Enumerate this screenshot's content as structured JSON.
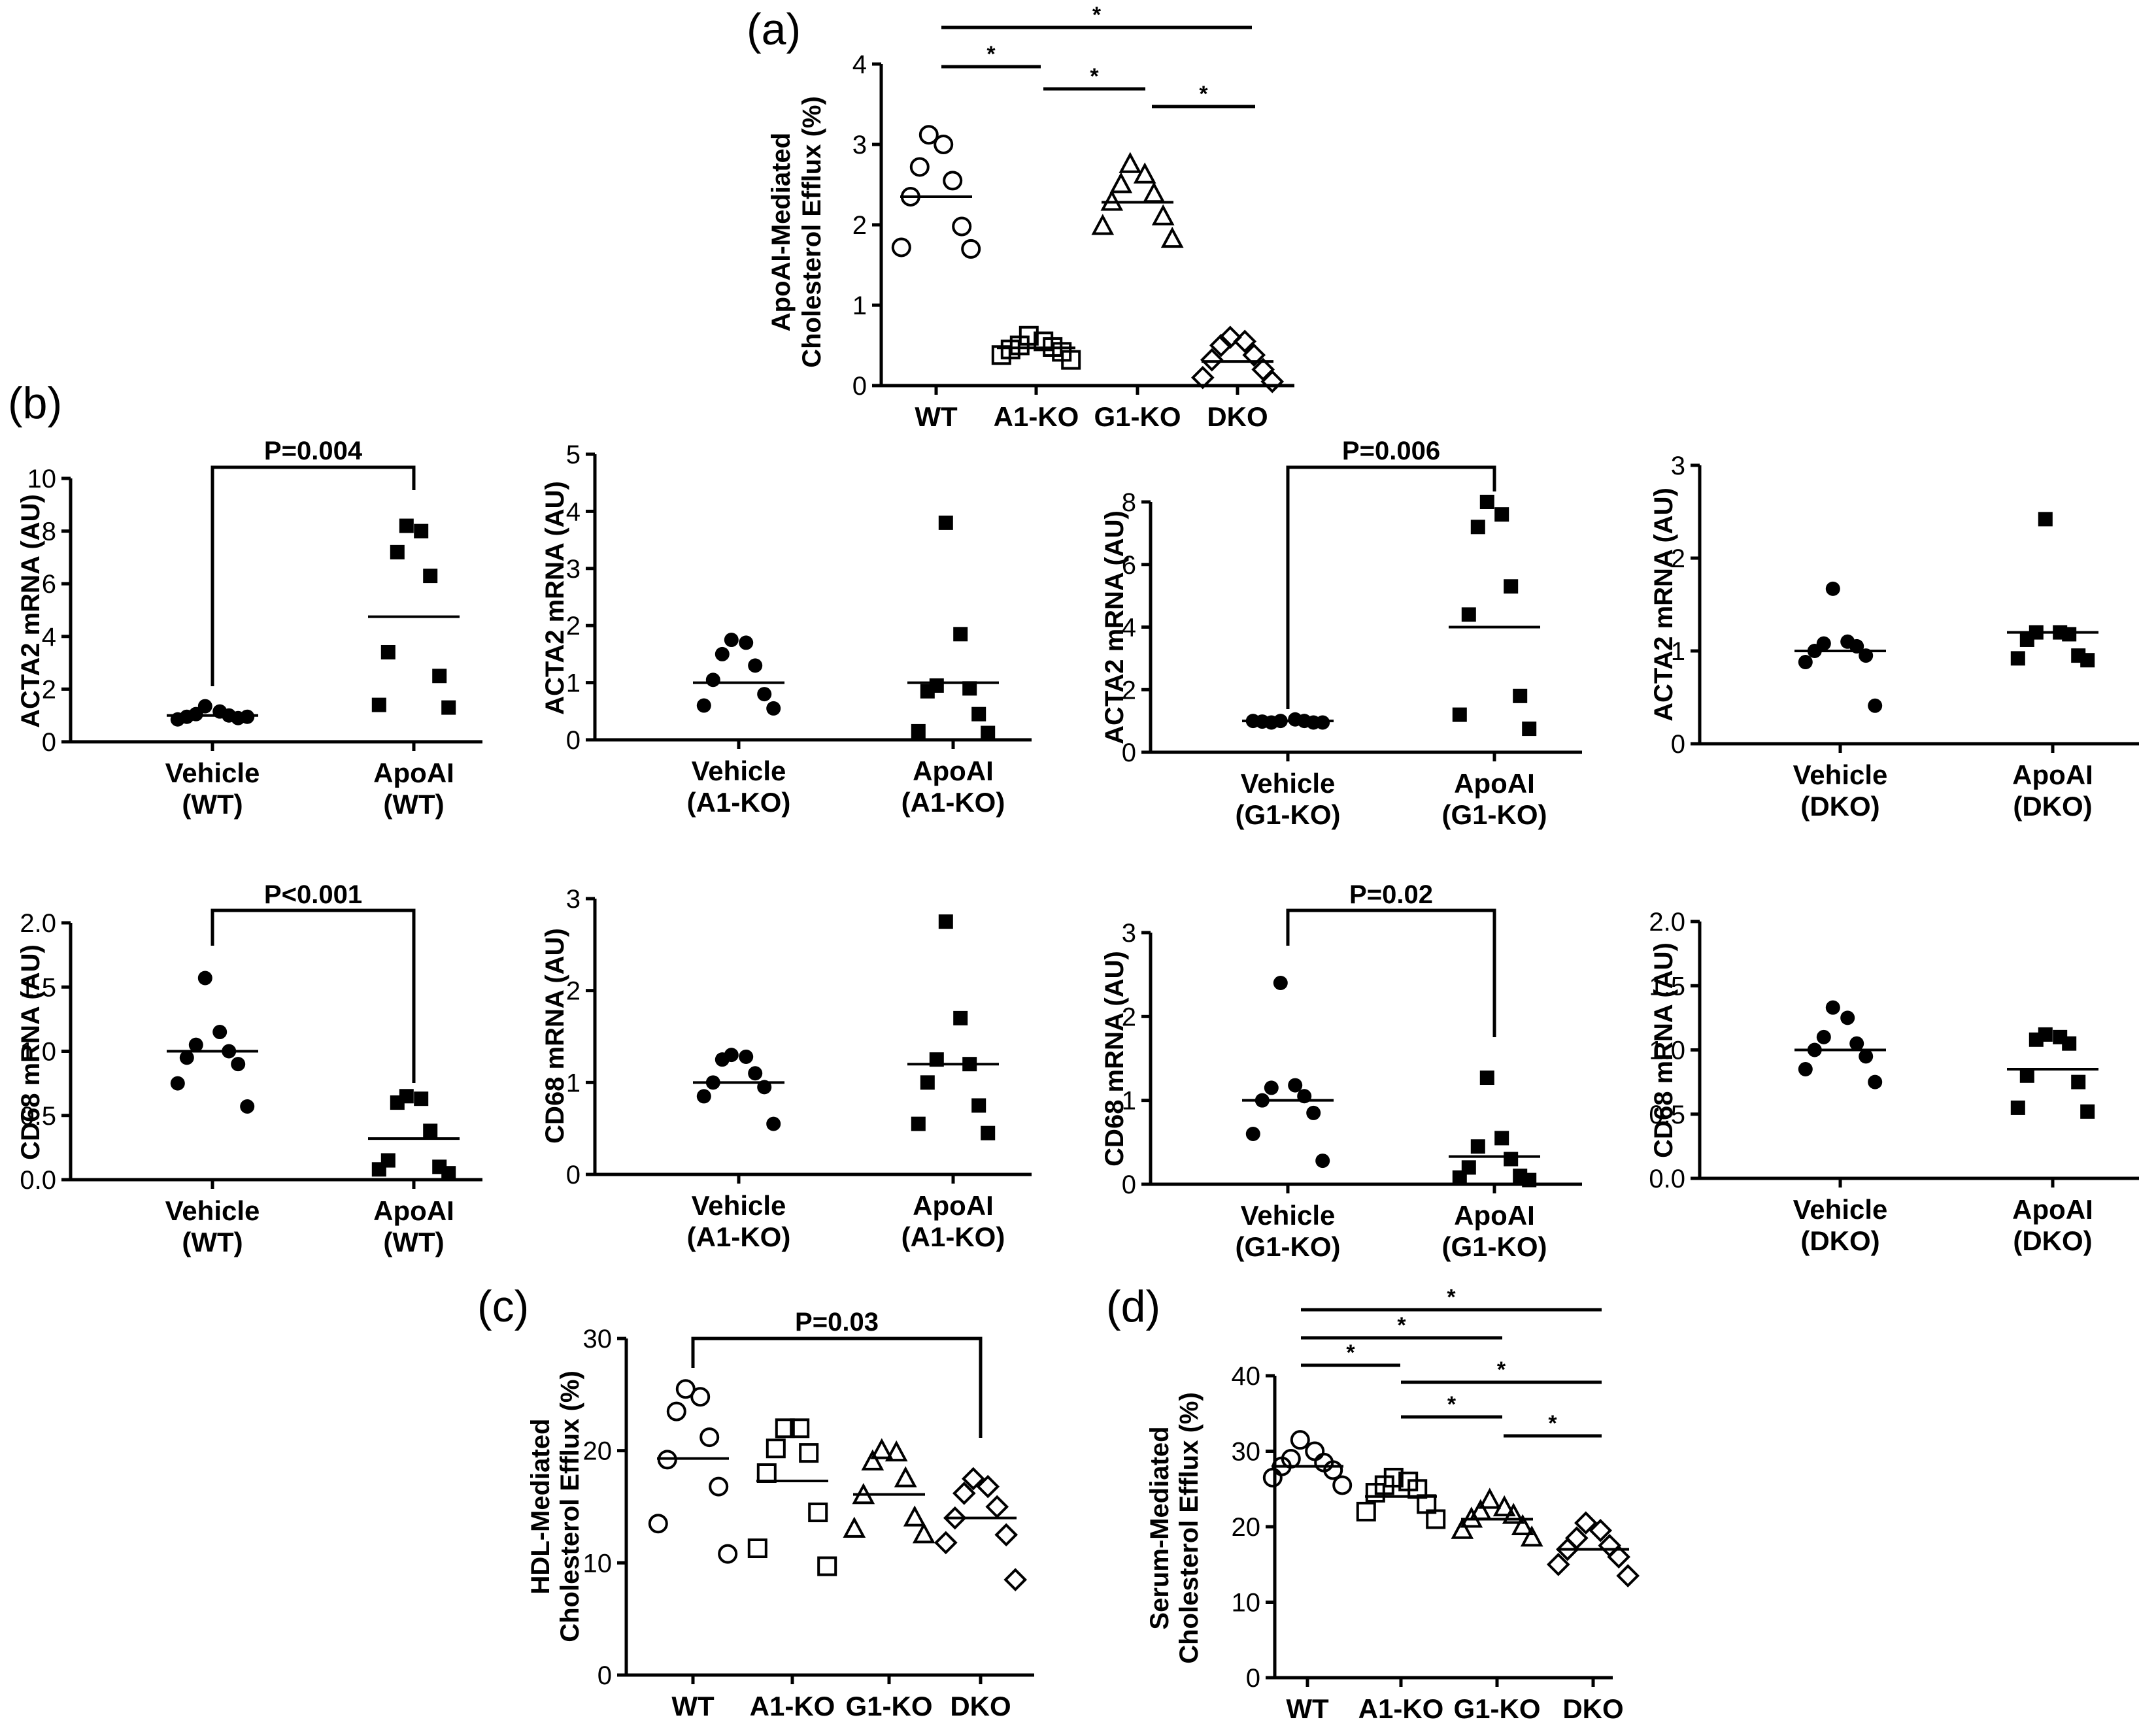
{
  "chart_data": [
    {
      "id": "a",
      "panel": "(a)",
      "type": "scatter",
      "ylabel": [
        "ApoAI-Mediated",
        "Cholesterol Efflux (%)"
      ],
      "ylim": [
        0,
        4
      ],
      "yticks": [
        "0",
        "1",
        "2",
        "3",
        "4"
      ],
      "categories": [
        "WT",
        "A1-KO",
        "G1-KO",
        "DKO"
      ],
      "markers": [
        "circle",
        "square",
        "triangle",
        "diamond"
      ],
      "points": [
        [
          3.12,
          3.0,
          2.72,
          2.55,
          2.35,
          1.98,
          1.72,
          1.7
        ],
        [
          0.62,
          0.55,
          0.5,
          0.48,
          0.45,
          0.42,
          0.38,
          0.32
        ],
        [
          2.75,
          2.62,
          2.5,
          2.38,
          2.28,
          2.1,
          1.98,
          1.82
        ],
        [
          0.6,
          0.55,
          0.5,
          0.38,
          0.32,
          0.2,
          0.1,
          0.05
        ]
      ],
      "medians": [
        2.35,
        0.47,
        2.28,
        0.3
      ],
      "significance": [
        {
          "from": 0,
          "to": 3,
          "label": "*"
        },
        {
          "from": 0,
          "to": 1,
          "label": "*"
        },
        {
          "from": 1,
          "to": 2,
          "label": "*"
        },
        {
          "from": 2,
          "to": 3,
          "label": "*"
        }
      ]
    },
    {
      "id": "b1",
      "panel": "(b)",
      "type": "scatter",
      "ylabel": [
        "ACTA2 mRNA (AU)"
      ],
      "ylim": [
        0,
        10
      ],
      "yticks": [
        "0",
        "2",
        "4",
        "6",
        "8",
        "10"
      ],
      "categories": [
        [
          "Vehicle",
          "(WT)"
        ],
        [
          "ApoAI",
          "(WT)"
        ]
      ],
      "markers": [
        "dot",
        "square-filled"
      ],
      "points": [
        [
          1.35,
          1.15,
          1.05,
          1.0,
          0.95,
          0.9,
          0.85,
          0.95
        ],
        [
          8.2,
          8.0,
          7.2,
          6.3,
          3.4,
          2.5,
          1.4,
          1.3
        ]
      ],
      "medians": [
        1.0,
        4.75
      ],
      "bracket": {
        "label": "P=0.004"
      }
    },
    {
      "id": "b2",
      "type": "scatter",
      "ylabel": [
        "ACTA2 mRNA (AU)"
      ],
      "ylim": [
        0,
        5
      ],
      "yticks": [
        "0",
        "1",
        "2",
        "3",
        "4",
        "5"
      ],
      "categories": [
        [
          "Vehicle",
          "(A1-KO)"
        ],
        [
          "ApoAI",
          "(A1-KO)"
        ]
      ],
      "markers": [
        "dot",
        "square-filled"
      ],
      "points": [
        [
          1.75,
          1.7,
          1.5,
          1.3,
          1.05,
          0.8,
          0.6,
          0.55
        ],
        [
          3.8,
          1.85,
          0.95,
          0.9,
          0.85,
          0.45,
          0.15,
          0.12
        ]
      ],
      "medians": [
        1.0,
        1.0
      ]
    },
    {
      "id": "b3",
      "type": "scatter",
      "ylabel": [
        "ACTA2 mRNA (AU)"
      ],
      "ylim": [
        0,
        8
      ],
      "yticks": [
        "0",
        "2",
        "4",
        "6",
        "8"
      ],
      "categories": [
        [
          "Vehicle",
          "(G1-KO)"
        ],
        [
          "ApoAI",
          "(G1-KO)"
        ]
      ],
      "markers": [
        "dot",
        "square-filled"
      ],
      "points": [
        [
          1.0,
          1.05,
          0.95,
          1.0,
          0.98,
          0.95,
          1.0,
          0.95
        ],
        [
          8.0,
          7.6,
          7.2,
          5.3,
          4.4,
          1.8,
          1.2,
          0.75
        ]
      ],
      "medians": [
        1.0,
        4.0
      ],
      "bracket": {
        "label": "P=0.006"
      }
    },
    {
      "id": "b4",
      "type": "scatter",
      "ylabel": [
        "ACTA2 mRNA (AU)"
      ],
      "ylim": [
        0,
        3
      ],
      "yticks": [
        "0",
        "1",
        "2",
        "3"
      ],
      "categories": [
        [
          "Vehicle",
          "(DKO)"
        ],
        [
          "ApoAI",
          "(DKO)"
        ]
      ],
      "markers": [
        "dot",
        "square-filled"
      ],
      "points": [
        [
          1.67,
          1.1,
          1.08,
          1.05,
          1.0,
          0.95,
          0.88,
          0.41
        ],
        [
          2.42,
          1.2,
          1.2,
          1.18,
          1.12,
          0.95,
          0.92,
          0.9
        ]
      ],
      "medians": [
        1.0,
        1.2
      ]
    },
    {
      "id": "b5",
      "type": "scatter",
      "ylabel": [
        "CD68 mRNA (AU)"
      ],
      "ylim": [
        0,
        2
      ],
      "yticks": [
        "0.0",
        "0.5",
        "1.0",
        "1.5",
        "2.0"
      ],
      "categories": [
        [
          "Vehicle",
          "(WT)"
        ],
        [
          "ApoAI",
          "(WT)"
        ]
      ],
      "markers": [
        "dot",
        "square-filled"
      ],
      "points": [
        [
          1.57,
          1.15,
          1.05,
          1.0,
          0.95,
          0.9,
          0.75,
          0.57
        ],
        [
          0.65,
          0.63,
          0.6,
          0.38,
          0.15,
          0.1,
          0.08,
          0.05
        ]
      ],
      "medians": [
        1.0,
        0.32
      ],
      "bracket": {
        "label": "P<0.001"
      }
    },
    {
      "id": "b6",
      "type": "scatter",
      "ylabel": [
        "CD68 mRNA (AU)"
      ],
      "ylim": [
        0,
        3
      ],
      "yticks": [
        "0",
        "1",
        "2",
        "3"
      ],
      "categories": [
        [
          "Vehicle",
          "(A1-KO)"
        ],
        [
          "ApoAI",
          "(A1-KO)"
        ]
      ],
      "markers": [
        "dot",
        "square-filled"
      ],
      "points": [
        [
          1.3,
          1.28,
          1.25,
          1.1,
          1.0,
          0.95,
          0.85,
          0.55
        ],
        [
          2.75,
          1.7,
          1.25,
          1.2,
          1.0,
          0.75,
          0.55,
          0.45
        ]
      ],
      "medians": [
        1.0,
        1.2
      ]
    },
    {
      "id": "b7",
      "type": "scatter",
      "ylabel": [
        "CD68 mRNA (AU)"
      ],
      "ylim": [
        0,
        3
      ],
      "yticks": [
        "0",
        "1",
        "2",
        "3"
      ],
      "categories": [
        [
          "Vehicle",
          "(G1-KO)"
        ],
        [
          "ApoAI",
          "(G1-KO)"
        ]
      ],
      "markers": [
        "dot",
        "square-filled"
      ],
      "points": [
        [
          2.4,
          1.18,
          1.15,
          1.05,
          1.0,
          0.85,
          0.6,
          0.28
        ],
        [
          1.27,
          0.55,
          0.45,
          0.3,
          0.2,
          0.1,
          0.08,
          0.05
        ]
      ],
      "medians": [
        1.0,
        0.33
      ],
      "bracket": {
        "label": "P=0.02"
      }
    },
    {
      "id": "b8",
      "type": "scatter",
      "ylabel": [
        "CD68 mRNA (AU)"
      ],
      "ylim": [
        0,
        2
      ],
      "yticks": [
        "0.0",
        "0.5",
        "1.0",
        "1.5",
        "2.0"
      ],
      "categories": [
        [
          "Vehicle",
          "(DKO)"
        ],
        [
          "ApoAI",
          "(DKO)"
        ]
      ],
      "markers": [
        "dot",
        "square-filled"
      ],
      "points": [
        [
          1.33,
          1.25,
          1.1,
          1.05,
          1.0,
          0.95,
          0.85,
          0.75
        ],
        [
          1.12,
          1.1,
          1.08,
          1.05,
          0.8,
          0.75,
          0.55,
          0.52
        ]
      ],
      "medians": [
        1.0,
        0.85
      ]
    },
    {
      "id": "c",
      "panel": "(c)",
      "type": "scatter",
      "ylabel": [
        "HDL-Mediated",
        "Cholesterol Efflux (%)"
      ],
      "ylim": [
        0,
        30
      ],
      "yticks": [
        "0",
        "10",
        "20",
        "30"
      ],
      "categories": [
        "WT",
        "A1-KO",
        "G1-KO",
        "DKO"
      ],
      "markers": [
        "circle",
        "square",
        "triangle",
        "diamond"
      ],
      "points": [
        [
          25.5,
          24.8,
          23.5,
          21.2,
          19.2,
          16.8,
          13.5,
          10.8
        ],
        [
          22.0,
          22.0,
          20.2,
          19.8,
          18.0,
          14.5,
          11.3,
          9.7
        ],
        [
          20.0,
          19.8,
          19.0,
          17.5,
          16.0,
          14.0,
          13.0,
          12.5
        ],
        [
          17.5,
          16.8,
          16.2,
          15.0,
          14.0,
          12.5,
          11.8,
          8.5
        ]
      ],
      "medians": [
        19.3,
        17.3,
        16.1,
        14.0
      ],
      "bracket": {
        "from": 0,
        "to": 3,
        "label": "P=0.03"
      }
    },
    {
      "id": "d",
      "panel": "(d)",
      "type": "scatter",
      "ylabel": [
        "Serum-Mediated",
        "Cholesterol Efflux (%)"
      ],
      "ylim": [
        0,
        40
      ],
      "yticks": [
        "0",
        "10",
        "20",
        "30",
        "40"
      ],
      "categories": [
        "WT",
        "A1-KO",
        "G1-KO",
        "DKO"
      ],
      "markers": [
        "circle",
        "square",
        "triangle",
        "diamond"
      ],
      "points": [
        [
          31.5,
          30.0,
          29.0,
          28.5,
          28.0,
          27.5,
          26.5,
          25.5
        ],
        [
          26.5,
          26.0,
          25.5,
          25.0,
          24.5,
          23.0,
          22.0,
          21.0
        ],
        [
          23.5,
          22.5,
          22.0,
          21.5,
          21.0,
          20.0,
          19.5,
          18.5
        ],
        [
          20.5,
          19.5,
          18.5,
          17.5,
          17.0,
          16.0,
          15.0,
          13.5
        ]
      ],
      "medians": [
        28.0,
        24.0,
        21.0,
        17.0
      ],
      "significance": [
        {
          "from": 0,
          "to": 3,
          "label": "*"
        },
        {
          "from": 0,
          "to": 2,
          "label": "*"
        },
        {
          "from": 0,
          "to": 1,
          "label": "*"
        },
        {
          "from": 1,
          "to": 3,
          "label": "*"
        },
        {
          "from": 1,
          "to": 2,
          "label": "*"
        },
        {
          "from": 2,
          "to": 3,
          "label": "*"
        }
      ]
    }
  ]
}
